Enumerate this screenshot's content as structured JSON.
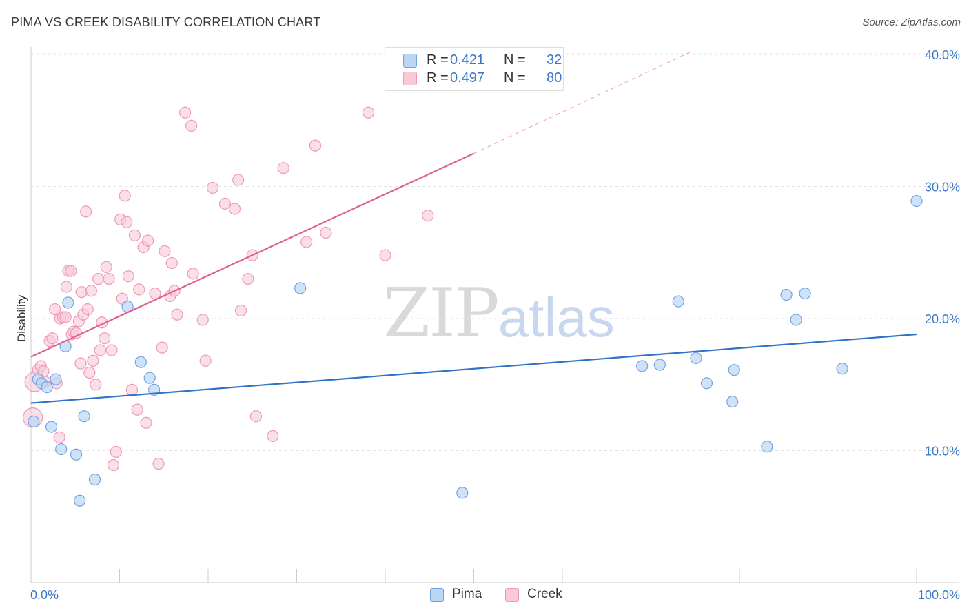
{
  "header": {
    "title": "PIMA VS CREEK DISABILITY CORRELATION CHART",
    "source": "Source: ZipAtlas.com"
  },
  "watermark": {
    "zip": "ZIP",
    "atlas": "atlas"
  },
  "legend": {
    "r_label": "R =",
    "n_label": "N =",
    "pima": {
      "r": "0.421",
      "n": "32"
    },
    "creek": {
      "r": "0.497",
      "n": "80"
    }
  },
  "colors": {
    "pima": "#6fa3e4",
    "pima_fill": "#bcd5f4",
    "pima_line": "#2f72c9",
    "creek": "#ef98b6",
    "creek_fill": "#f8c9d9",
    "creek_line": "#e0608f",
    "tick_label": "#3b78c7",
    "grid": "#e3e3e3"
  },
  "chart_data": {
    "type": "scatter",
    "title": "PIMA VS CREEK DISABILITY CORRELATION CHART",
    "xlabel": "",
    "ylabel": "Disability",
    "xlim": [
      0,
      100
    ],
    "ylim": [
      0,
      43
    ],
    "x_tick_labels": [
      "0.0%",
      "100.0%"
    ],
    "y_ticks": [
      10,
      20,
      30,
      40
    ],
    "y_tick_labels": [
      "10.0%",
      "20.0%",
      "30.0%",
      "40.0%"
    ],
    "grid": "horizontal dashed",
    "legend_position": "top-center",
    "series": [
      {
        "name": "Pima",
        "r": 0.421,
        "n": 32,
        "trend": {
          "x": [
            0,
            100
          ],
          "y": [
            13.6,
            18.8
          ]
        },
        "points": [
          [
            0.3,
            12.2
          ],
          [
            0.8,
            15.4
          ],
          [
            1.2,
            15.1
          ],
          [
            1.8,
            14.8
          ],
          [
            2.3,
            11.8
          ],
          [
            2.8,
            15.4
          ],
          [
            3.4,
            10.1
          ],
          [
            3.9,
            17.9
          ],
          [
            4.2,
            21.2
          ],
          [
            5.1,
            9.7
          ],
          [
            5.5,
            6.2
          ],
          [
            6.0,
            12.6
          ],
          [
            7.2,
            7.8
          ],
          [
            10.9,
            20.9
          ],
          [
            12.4,
            16.7
          ],
          [
            13.4,
            15.5
          ],
          [
            13.9,
            14.6
          ],
          [
            30.4,
            22.3
          ],
          [
            48.7,
            6.8
          ],
          [
            69.0,
            16.4
          ],
          [
            71.0,
            16.5
          ],
          [
            73.1,
            21.3
          ],
          [
            75.1,
            17.0
          ],
          [
            76.3,
            15.1
          ],
          [
            79.4,
            16.1
          ],
          [
            79.2,
            13.7
          ],
          [
            83.1,
            10.3
          ],
          [
            85.3,
            21.8
          ],
          [
            86.4,
            19.9
          ],
          [
            87.4,
            21.9
          ],
          [
            91.6,
            16.2
          ],
          [
            100.0,
            28.9
          ]
        ]
      },
      {
        "name": "Creek",
        "r": 0.497,
        "n": 80,
        "trend": {
          "x": [
            0,
            50
          ],
          "y": [
            17.1,
            32.5
          ]
        },
        "trend_extension": {
          "x": [
            50,
            74.5
          ],
          "y": [
            32.5,
            40.2
          ]
        },
        "points": [
          [
            0.2,
            12.5
          ],
          [
            0.4,
            15.2
          ],
          [
            0.8,
            16.1
          ],
          [
            1.1,
            16.4
          ],
          [
            1.4,
            16.0
          ],
          [
            1.6,
            15.2
          ],
          [
            2.1,
            18.3
          ],
          [
            2.4,
            18.5
          ],
          [
            2.7,
            20.7
          ],
          [
            2.9,
            15.1
          ],
          [
            3.2,
            11.0
          ],
          [
            3.3,
            20.0
          ],
          [
            3.6,
            20.1
          ],
          [
            3.9,
            20.1
          ],
          [
            4.0,
            22.4
          ],
          [
            4.2,
            23.6
          ],
          [
            4.5,
            23.6
          ],
          [
            4.6,
            18.8
          ],
          [
            4.8,
            19.0
          ],
          [
            5.1,
            18.9
          ],
          [
            5.4,
            19.8
          ],
          [
            5.6,
            16.6
          ],
          [
            5.7,
            22.0
          ],
          [
            5.9,
            20.3
          ],
          [
            6.2,
            28.1
          ],
          [
            6.4,
            20.7
          ],
          [
            6.6,
            15.9
          ],
          [
            6.8,
            22.1
          ],
          [
            7.0,
            16.8
          ],
          [
            7.3,
            15.0
          ],
          [
            7.6,
            23.0
          ],
          [
            7.8,
            17.6
          ],
          [
            8.0,
            19.7
          ],
          [
            8.3,
            18.5
          ],
          [
            8.5,
            23.9
          ],
          [
            8.8,
            23.0
          ],
          [
            9.1,
            17.6
          ],
          [
            9.3,
            8.9
          ],
          [
            9.6,
            9.9
          ],
          [
            10.1,
            27.5
          ],
          [
            10.3,
            21.5
          ],
          [
            10.6,
            29.3
          ],
          [
            10.8,
            27.3
          ],
          [
            11.0,
            23.2
          ],
          [
            11.4,
            14.6
          ],
          [
            11.7,
            26.3
          ],
          [
            12.2,
            22.2
          ],
          [
            12.7,
            25.4
          ],
          [
            13.0,
            12.1
          ],
          [
            13.2,
            25.9
          ],
          [
            14.0,
            21.9
          ],
          [
            14.4,
            9.0
          ],
          [
            14.8,
            17.8
          ],
          [
            15.1,
            25.1
          ],
          [
            15.7,
            21.7
          ],
          [
            15.9,
            24.2
          ],
          [
            16.2,
            22.1
          ],
          [
            16.5,
            20.3
          ],
          [
            17.4,
            35.6
          ],
          [
            18.1,
            34.6
          ],
          [
            18.3,
            23.4
          ],
          [
            19.4,
            19.9
          ],
          [
            19.7,
            16.8
          ],
          [
            20.5,
            29.9
          ],
          [
            21.9,
            28.7
          ],
          [
            23.0,
            28.3
          ],
          [
            23.4,
            30.5
          ],
          [
            23.7,
            20.6
          ],
          [
            24.5,
            23.0
          ],
          [
            25.0,
            24.8
          ],
          [
            25.4,
            12.6
          ],
          [
            27.3,
            11.1
          ],
          [
            28.5,
            31.4
          ],
          [
            31.1,
            25.8
          ],
          [
            32.1,
            33.1
          ],
          [
            38.1,
            35.6
          ],
          [
            40.0,
            24.8
          ],
          [
            44.8,
            27.8
          ],
          [
            33.3,
            26.5
          ],
          [
            12.0,
            13.1
          ]
        ]
      }
    ]
  },
  "bottom_legend": {
    "pima": "Pima",
    "creek": "Creek"
  }
}
